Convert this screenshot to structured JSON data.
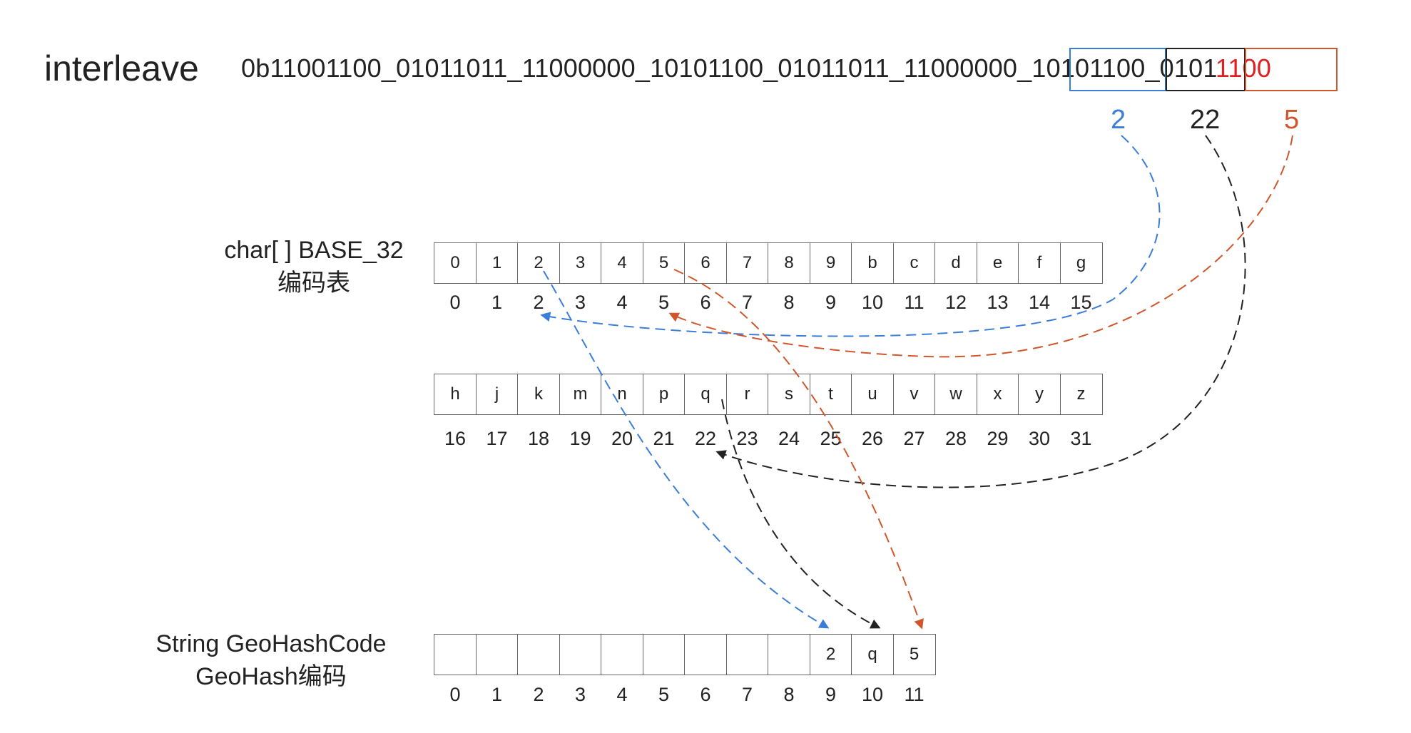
{
  "title": "interleave",
  "binary": {
    "main": "0b11001100_01011011_11000000_10101100_01011011_11000000_10101100_0101",
    "tail": "1100"
  },
  "segments": [
    {
      "value": "2",
      "color": "#3b7dd8"
    },
    {
      "value": "22",
      "color": "#222222"
    },
    {
      "value": "5",
      "color": "#d0562b"
    }
  ],
  "base32_label": [
    "char[ ] BASE_32",
    "编码表"
  ],
  "base32_row1": {
    "chars": [
      "0",
      "1",
      "2",
      "3",
      "4",
      "5",
      "6",
      "7",
      "8",
      "9",
      "b",
      "c",
      "d",
      "e",
      "f",
      "g"
    ],
    "indices": [
      "0",
      "1",
      "2",
      "3",
      "4",
      "5",
      "6",
      "7",
      "8",
      "9",
      "10",
      "11",
      "12",
      "13",
      "14",
      "15"
    ]
  },
  "base32_row2": {
    "chars": [
      "h",
      "j",
      "k",
      "m",
      "n",
      "p",
      "q",
      "r",
      "s",
      "t",
      "u",
      "v",
      "w",
      "x",
      "y",
      "z"
    ],
    "indices": [
      "16",
      "17",
      "18",
      "19",
      "20",
      "21",
      "22",
      "23",
      "24",
      "25",
      "26",
      "27",
      "28",
      "29",
      "30",
      "31"
    ]
  },
  "geohash_label": [
    "String GeoHashCode",
    "GeoHash编码"
  ],
  "geohash_code": {
    "chars": [
      "",
      "",
      "",
      "",
      "",
      "",
      "",
      "",
      "",
      "2",
      "q",
      "5"
    ],
    "indices": [
      "0",
      "1",
      "2",
      "3",
      "4",
      "5",
      "6",
      "7",
      "8",
      "9",
      "10",
      "11"
    ]
  },
  "colors": {
    "blue": "#3b7dd8",
    "black": "#222222",
    "orange": "#d0562b",
    "tail_red": "#e02020"
  }
}
